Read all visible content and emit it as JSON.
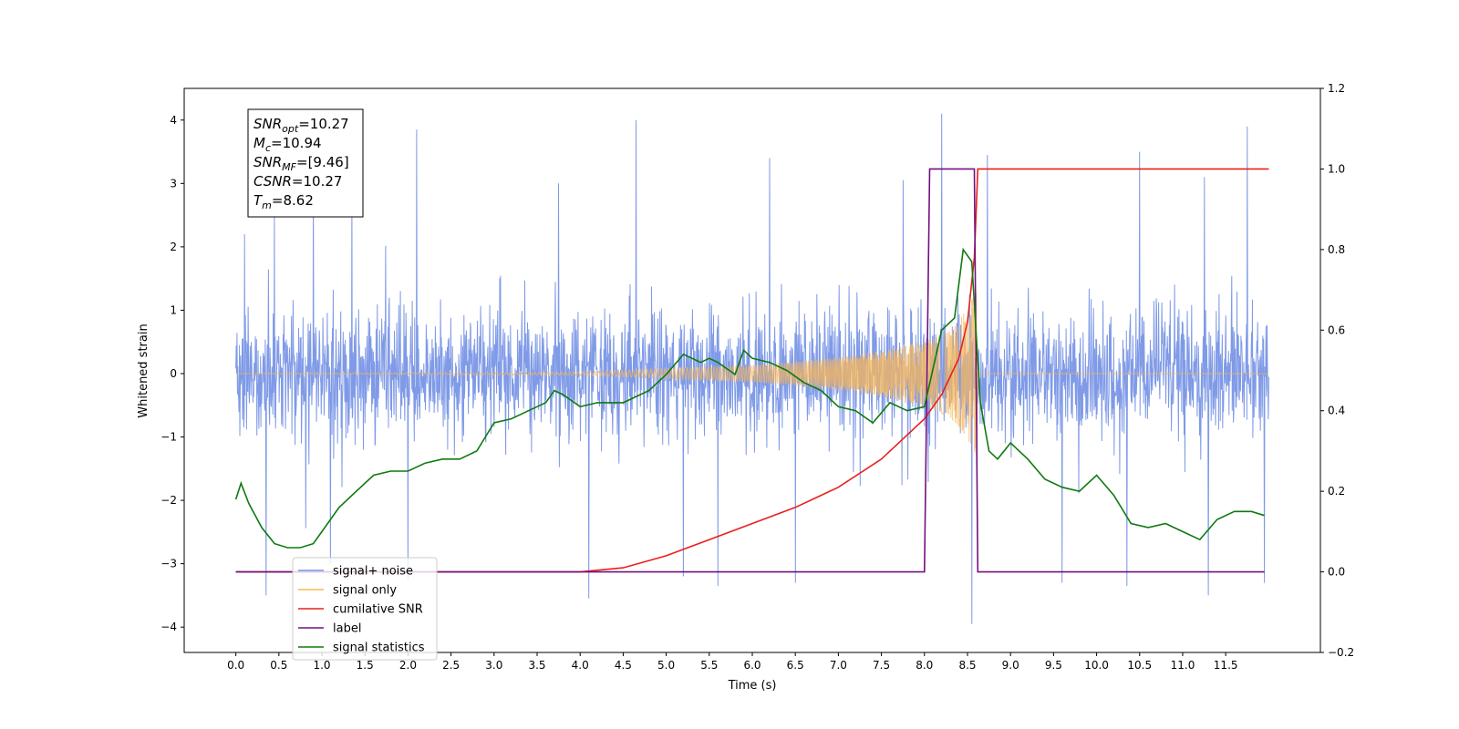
{
  "chart_data": {
    "type": "line",
    "xlabel": "Time (s)",
    "ylabel": "Whitened strain",
    "xlim": [
      -0.6,
      12.6
    ],
    "ylim": [
      -4.4,
      4.5
    ],
    "y2lim": [
      -0.2,
      1.2
    ],
    "grid": false,
    "legend_position": "lower-left",
    "x_ticks": [
      "0.0",
      "0.5",
      "1.0",
      "1.5",
      "2.0",
      "2.5",
      "3.0",
      "3.5",
      "4.0",
      "4.5",
      "5.0",
      "5.5",
      "6.0",
      "6.5",
      "7.0",
      "7.5",
      "8.0",
      "8.5",
      "9.0",
      "9.5",
      "10.0",
      "10.5",
      "11.0",
      "11.5"
    ],
    "y_ticks": [
      "−4",
      "−3",
      "−2",
      "−1",
      "0",
      "1",
      "2",
      "3",
      "4"
    ],
    "y2_ticks": [
      "−0.2",
      "0.0",
      "0.2",
      "0.4",
      "0.6",
      "0.8",
      "1.0",
      "1.2"
    ],
    "annotation": [
      {
        "base": "SNR",
        "sub": "opt",
        "value": "=10.27"
      },
      {
        "base": "M",
        "sub": "c",
        "value": "=10.94"
      },
      {
        "base": "SNR",
        "sub": "MF",
        "value": "=[9.46]"
      },
      {
        "base": "CSNR",
        "sub": "",
        "value": "=10.27"
      },
      {
        "base": "T",
        "sub": "m",
        "value": "=8.62"
      }
    ],
    "series": [
      {
        "name": "signal+ noise",
        "color": "#7895e6",
        "axis": "left",
        "x_range": [
          0.0,
          12.0
        ],
        "envelope_typical": [
          -1.6,
          1.6
        ],
        "peaks_high": [
          [
            0.1,
            2.2
          ],
          [
            0.45,
            2.6
          ],
          [
            0.9,
            3.0
          ],
          [
            1.35,
            2.9
          ],
          [
            2.1,
            3.85
          ],
          [
            3.75,
            3.0
          ],
          [
            4.65,
            4.0
          ],
          [
            5.2,
            3.2
          ],
          [
            6.2,
            3.4
          ],
          [
            7.75,
            3.05
          ],
          [
            8.2,
            4.1
          ],
          [
            8.73,
            3.45
          ],
          [
            10.5,
            3.5
          ],
          [
            11.25,
            3.1
          ],
          [
            11.75,
            3.9
          ]
        ],
        "peaks_low": [
          [
            0.35,
            -3.5
          ],
          [
            1.1,
            -3.0
          ],
          [
            2.0,
            -3.25
          ],
          [
            4.1,
            -3.55
          ],
          [
            5.2,
            -3.2
          ],
          [
            5.6,
            -3.35
          ],
          [
            6.5,
            -3.3
          ],
          [
            8.55,
            -3.95
          ],
          [
            9.6,
            -3.3
          ],
          [
            10.35,
            -3.35
          ],
          [
            11.3,
            -3.5
          ],
          [
            11.95,
            -3.3
          ]
        ]
      },
      {
        "name": "signal only",
        "color": "#f7b55a",
        "axis": "left",
        "chirp_envelope": [
          [
            0.0,
            0.0
          ],
          [
            4.0,
            0.02
          ],
          [
            5.0,
            0.06
          ],
          [
            6.0,
            0.1
          ],
          [
            6.5,
            0.14
          ],
          [
            7.0,
            0.19
          ],
          [
            7.5,
            0.27
          ],
          [
            8.0,
            0.38
          ],
          [
            8.2,
            0.46
          ],
          [
            8.4,
            0.62
          ],
          [
            8.5,
            0.78
          ],
          [
            8.6,
            0.95
          ],
          [
            8.62,
            0.0
          ],
          [
            12.0,
            0.0
          ]
        ]
      },
      {
        "name": "cumilative SNR",
        "color": "#e8201c",
        "axis": "right",
        "x": [
          0.0,
          4.0,
          4.5,
          5.0,
          5.5,
          6.0,
          6.5,
          7.0,
          7.5,
          8.0,
          8.2,
          8.4,
          8.5,
          8.58,
          8.62,
          12.0
        ],
        "values": [
          0.0,
          0.0,
          0.01,
          0.04,
          0.08,
          0.12,
          0.16,
          0.21,
          0.28,
          0.38,
          0.44,
          0.53,
          0.62,
          0.78,
          1.0,
          1.0
        ]
      },
      {
        "name": "label",
        "color": "#73107f",
        "axis": "right",
        "x": [
          0.0,
          8.0,
          8.06,
          8.58,
          8.62,
          11.95
        ],
        "values": [
          0.0,
          0.0,
          1.0,
          1.0,
          0.0,
          0.0
        ]
      },
      {
        "name": "signal statistics",
        "color": "#0f7a0f",
        "axis": "right",
        "x": [
          0.0,
          0.06,
          0.15,
          0.3,
          0.45,
          0.6,
          0.75,
          0.9,
          1.0,
          1.2,
          1.4,
          1.6,
          1.8,
          2.0,
          2.2,
          2.4,
          2.6,
          2.8,
          3.0,
          3.2,
          3.4,
          3.5,
          3.6,
          3.7,
          3.8,
          4.0,
          4.2,
          4.5,
          4.8,
          5.0,
          5.2,
          5.4,
          5.5,
          5.6,
          5.8,
          5.9,
          6.0,
          6.2,
          6.4,
          6.6,
          6.8,
          7.0,
          7.2,
          7.4,
          7.6,
          7.8,
          8.0,
          8.2,
          8.35,
          8.45,
          8.55,
          8.65,
          8.75,
          8.85,
          9.0,
          9.2,
          9.4,
          9.6,
          9.8,
          10.0,
          10.2,
          10.4,
          10.6,
          10.8,
          11.0,
          11.2,
          11.4,
          11.6,
          11.8,
          11.95
        ],
        "values": [
          0.18,
          0.22,
          0.17,
          0.11,
          0.07,
          0.06,
          0.06,
          0.07,
          0.1,
          0.16,
          0.2,
          0.24,
          0.25,
          0.25,
          0.27,
          0.28,
          0.28,
          0.3,
          0.37,
          0.38,
          0.4,
          0.41,
          0.42,
          0.45,
          0.44,
          0.41,
          0.42,
          0.42,
          0.45,
          0.49,
          0.54,
          0.52,
          0.53,
          0.52,
          0.49,
          0.55,
          0.53,
          0.52,
          0.5,
          0.47,
          0.45,
          0.41,
          0.4,
          0.37,
          0.42,
          0.4,
          0.41,
          0.6,
          0.63,
          0.8,
          0.77,
          0.42,
          0.3,
          0.28,
          0.32,
          0.28,
          0.23,
          0.21,
          0.2,
          0.24,
          0.19,
          0.12,
          0.11,
          0.12,
          0.1,
          0.08,
          0.13,
          0.15,
          0.15,
          0.14
        ]
      }
    ]
  }
}
